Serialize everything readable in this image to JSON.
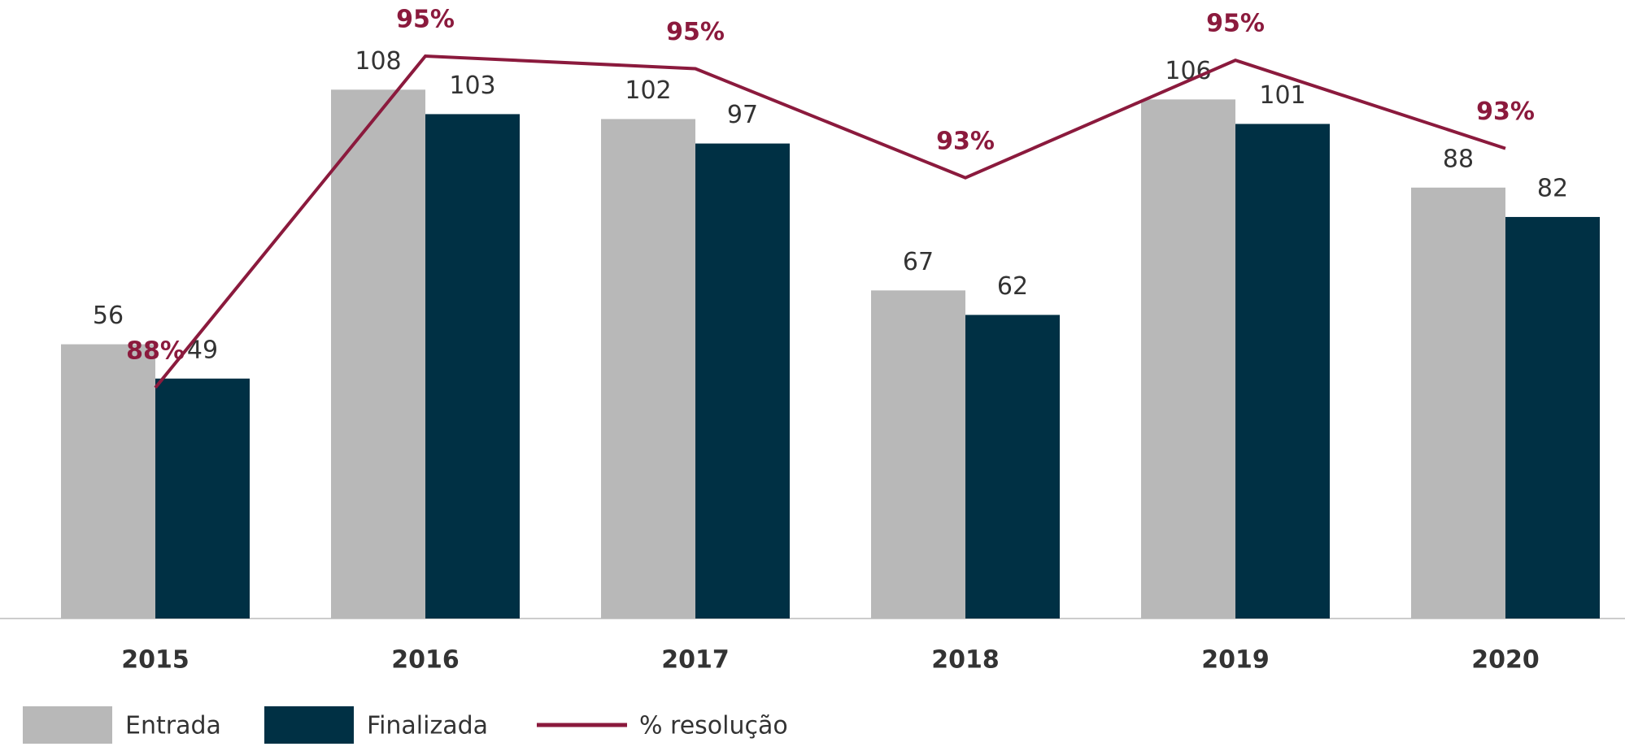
{
  "chart_data": {
    "type": "bar",
    "categories": [
      "2015",
      "2016",
      "2017",
      "2018",
      "2019",
      "2020"
    ],
    "series": [
      {
        "name": "Entrada",
        "color": "#b8b8b8",
        "values": [
          56,
          108,
          102,
          67,
          106,
          88
        ]
      },
      {
        "name": "Finalizada",
        "color": "#003044",
        "values": [
          49,
          103,
          97,
          62,
          101,
          82
        ]
      },
      {
        "name": "% resolução",
        "type": "line",
        "axis": "y2",
        "color": "#8b1a3d",
        "values": [
          87.5,
          95.4,
          95.1,
          92.5,
          95.3,
          93.2
        ],
        "value_labels": [
          "88%",
          "95%",
          "95%",
          "93%",
          "95%",
          "93%"
        ]
      }
    ],
    "ylim": [
      0,
      120
    ],
    "y2lim": [
      82,
      96
    ],
    "legend": "bottom-left"
  }
}
